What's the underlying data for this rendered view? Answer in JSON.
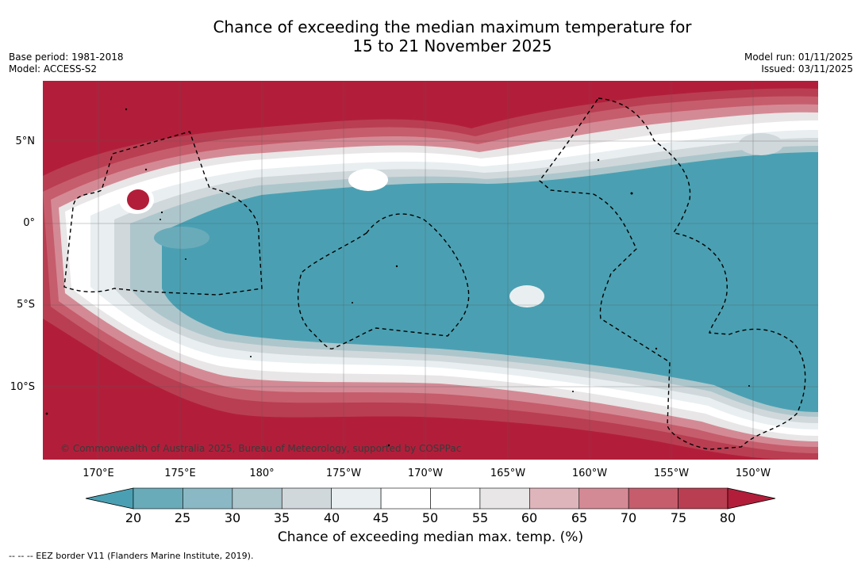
{
  "title": {
    "line1": "Chance of exceeding the median maximum temperature for",
    "line2": "15 to 21 November 2025"
  },
  "meta": {
    "base_period": "Base period: 1981-2018",
    "model": "Model: ACCESS-S2",
    "model_run": "Model run: 01/11/2025",
    "issued": "Issued: 03/11/2025"
  },
  "map": {
    "lat_labels": [
      "5°N",
      "0°",
      "5°S",
      "10°S"
    ],
    "lon_labels": [
      "170°E",
      "175°E",
      "180°",
      "175°W",
      "170°W",
      "165°W",
      "160°W",
      "155°W",
      "150°W"
    ],
    "copyright": "© Commonwealth of Australia 2025, Bureau of Meteorology, supported by COSPPac"
  },
  "colorbar": {
    "ticks": [
      "20",
      "25",
      "30",
      "35",
      "40",
      "45",
      "50",
      "55",
      "60",
      "65",
      "70",
      "75",
      "80"
    ],
    "colors": {
      "below": "#4aa0b2",
      "bins": [
        "#6aabba",
        "#8ab9c5",
        "#adc6cc",
        "#d0d8db",
        "#e9eff1",
        "#ffffff",
        "#ffffff",
        "#e8e6e7",
        "#dfb5bc",
        "#d48a95",
        "#c65d6c",
        "#b93e52"
      ],
      "above": "#b21e3a"
    },
    "label": "Chance of exceeding median max. temp. (%)"
  },
  "footnote": "--  --  -- EEZ border V11 (Flanders Marine Institute, 2019)."
}
